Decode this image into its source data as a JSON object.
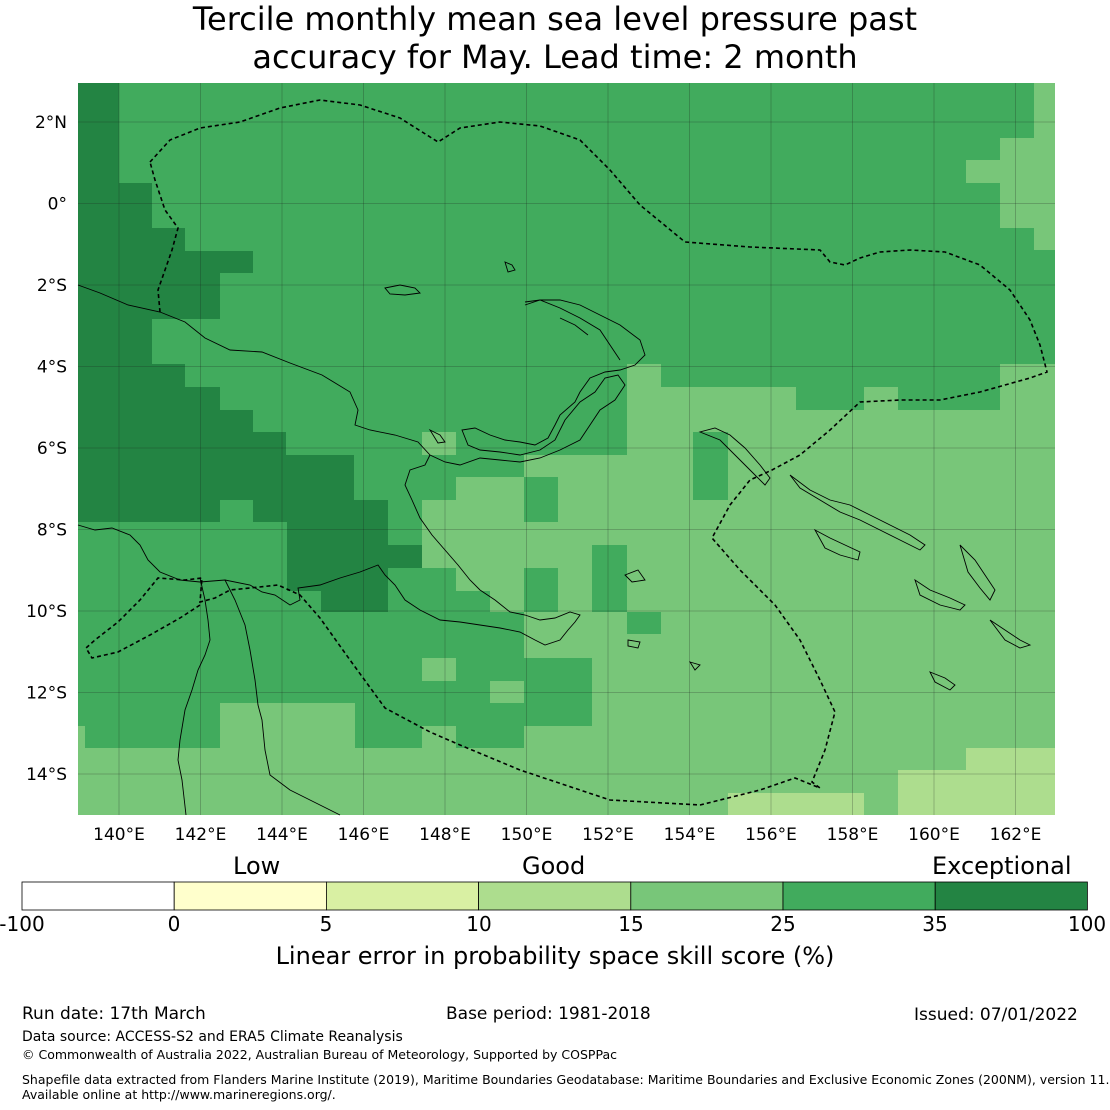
{
  "title": {
    "line1": "Tercile monthly mean sea level pressure past",
    "line2": "accuracy for May. Lead time: 2 month"
  },
  "map": {
    "lon_labels": [
      "140°E",
      "142°E",
      "144°E",
      "146°E",
      "148°E",
      "150°E",
      "152°E",
      "154°E",
      "156°E",
      "158°E",
      "160°E",
      "162°E"
    ],
    "lat_labels": [
      "2°N",
      "0°",
      "2°S",
      "4°S",
      "6°S",
      "8°S",
      "10°S",
      "12°S",
      "14°S"
    ]
  },
  "colorbar": {
    "categories": [
      "Low",
      "Good",
      "Exceptional"
    ],
    "ticks": [
      "-100",
      "0",
      "5",
      "10",
      "15",
      "25",
      "35",
      "100"
    ],
    "colors": [
      "#ffffff",
      "#ffffcc",
      "#d9f0a3",
      "#addd8e",
      "#78c679",
      "#41ab5d",
      "#238443"
    ],
    "label": "Linear error in probability space skill score (%)"
  },
  "footer": {
    "run_date": "Run date: 17th March",
    "base_period": "Base period: 1981-2018",
    "issued": "Issued: 07/01/2022",
    "data_source": "Data source: ACCESS-S2 and ERA5 Climate Reanalysis",
    "copyright": "© Commonwealth of Australia 2022, Australian Bureau of Meteorology, Supported by COSPPac",
    "shapefile_line1": "Shapefile data extracted from Flanders Marine Institute (2019), Maritime Boundaries Geodatabase: Maritime Boundaries and Exclusive Economic Zones (200NM), version 11.",
    "shapefile_line2": "Available online at http://www.marineregions.org/."
  }
}
